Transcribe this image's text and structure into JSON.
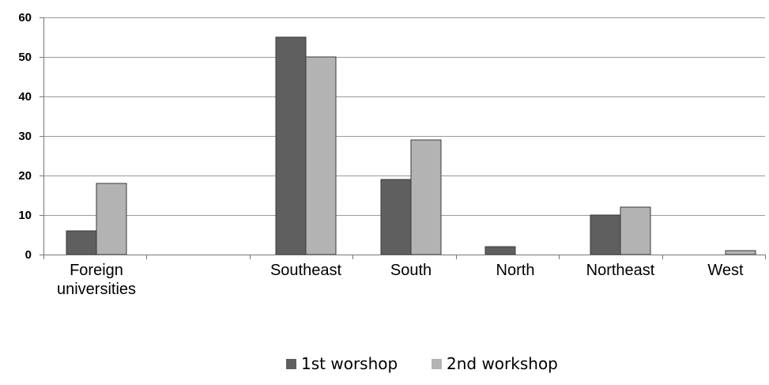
{
  "chart_data": {
    "type": "bar",
    "categories": [
      [
        "Foreign",
        "universities"
      ],
      [
        ""
      ],
      [
        "Southeast"
      ],
      [
        "South"
      ],
      [
        "North"
      ],
      [
        "Northeast"
      ],
      [
        "West"
      ]
    ],
    "series": [
      {
        "name": "1st worshop",
        "color": "#5f5f5f",
        "values": [
          6,
          0,
          55,
          19,
          2,
          10,
          0
        ]
      },
      {
        "name": "2nd workshop",
        "color": "#b3b3b3",
        "values": [
          18,
          0,
          50,
          29,
          0,
          12,
          1
        ]
      }
    ],
    "ylim": [
      0,
      60
    ],
    "yticks": [
      0,
      10,
      20,
      30,
      40,
      50,
      60
    ],
    "grid": true,
    "legend_position": "bottom"
  }
}
